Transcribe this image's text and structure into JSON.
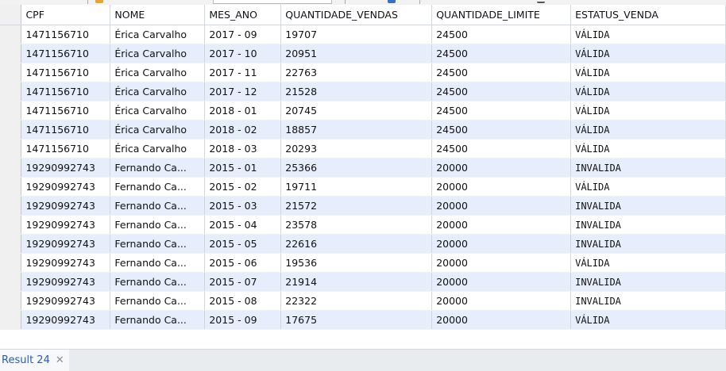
{
  "columns": [
    "CPF",
    "NOME",
    "MES_ANO",
    "QUANTIDADE_VENDAS",
    "QUANTIDADE_LIMITE",
    "ESTATUS_VENDA"
  ],
  "rows": [
    [
      "1471156710",
      "Érica Carvalho",
      "2017 - 09",
      "19707",
      "24500",
      "VÁLIDA"
    ],
    [
      "1471156710",
      "Érica Carvalho",
      "2017 - 10",
      "20951",
      "24500",
      "VÁLIDA"
    ],
    [
      "1471156710",
      "Érica Carvalho",
      "2017 - 11",
      "22763",
      "24500",
      "VÁLIDA"
    ],
    [
      "1471156710",
      "Érica Carvalho",
      "2017 - 12",
      "21528",
      "24500",
      "VÁLIDA"
    ],
    [
      "1471156710",
      "Érica Carvalho",
      "2018 - 01",
      "20745",
      "24500",
      "VÁLIDA"
    ],
    [
      "1471156710",
      "Érica Carvalho",
      "2018 - 02",
      "18857",
      "24500",
      "VÁLIDA"
    ],
    [
      "1471156710",
      "Érica Carvalho",
      "2018 - 03",
      "20293",
      "24500",
      "VÁLIDA"
    ],
    [
      "19290992743",
      "Fernando Ca...",
      "2015 - 01",
      "25366",
      "20000",
      "INVALIDA"
    ],
    [
      "19290992743",
      "Fernando Ca...",
      "2015 - 02",
      "19711",
      "20000",
      " VÁLIDA"
    ],
    [
      "19290992743",
      "Fernando Ca...",
      "2015 - 03",
      "21572",
      "20000",
      "INVALIDA"
    ],
    [
      "19290992743",
      "Fernando Ca...",
      "2015 - 04",
      "23578",
      "20000",
      "INVALIDA"
    ],
    [
      "19290992743",
      "Fernando Ca...",
      "2015 - 05",
      "22616",
      "20000",
      "INVALIDA"
    ],
    [
      "19290992743",
      "Fernando Ca...",
      "2015 - 06",
      "19536",
      "20000",
      " VÁLIDA"
    ],
    [
      "19290992743",
      "Fernando Ca...",
      "2015 - 07",
      "21914",
      "20000",
      "INVALIDA"
    ],
    [
      "19290992743",
      "Fernando Ca...",
      "2015 - 08",
      "22322",
      "20000",
      "INVALIDA"
    ],
    [
      "19290992743",
      "Fernando Ca...",
      "2015 - 09",
      "17675",
      "20000",
      " VÁLIDA"
    ]
  ],
  "result_tab": {
    "label": "Result 24",
    "close_icon": "close-icon"
  },
  "colors": {
    "alt_row": "#e6eefc",
    "tab_text": "#2a5db0",
    "row_header": "#f0f0f0"
  }
}
